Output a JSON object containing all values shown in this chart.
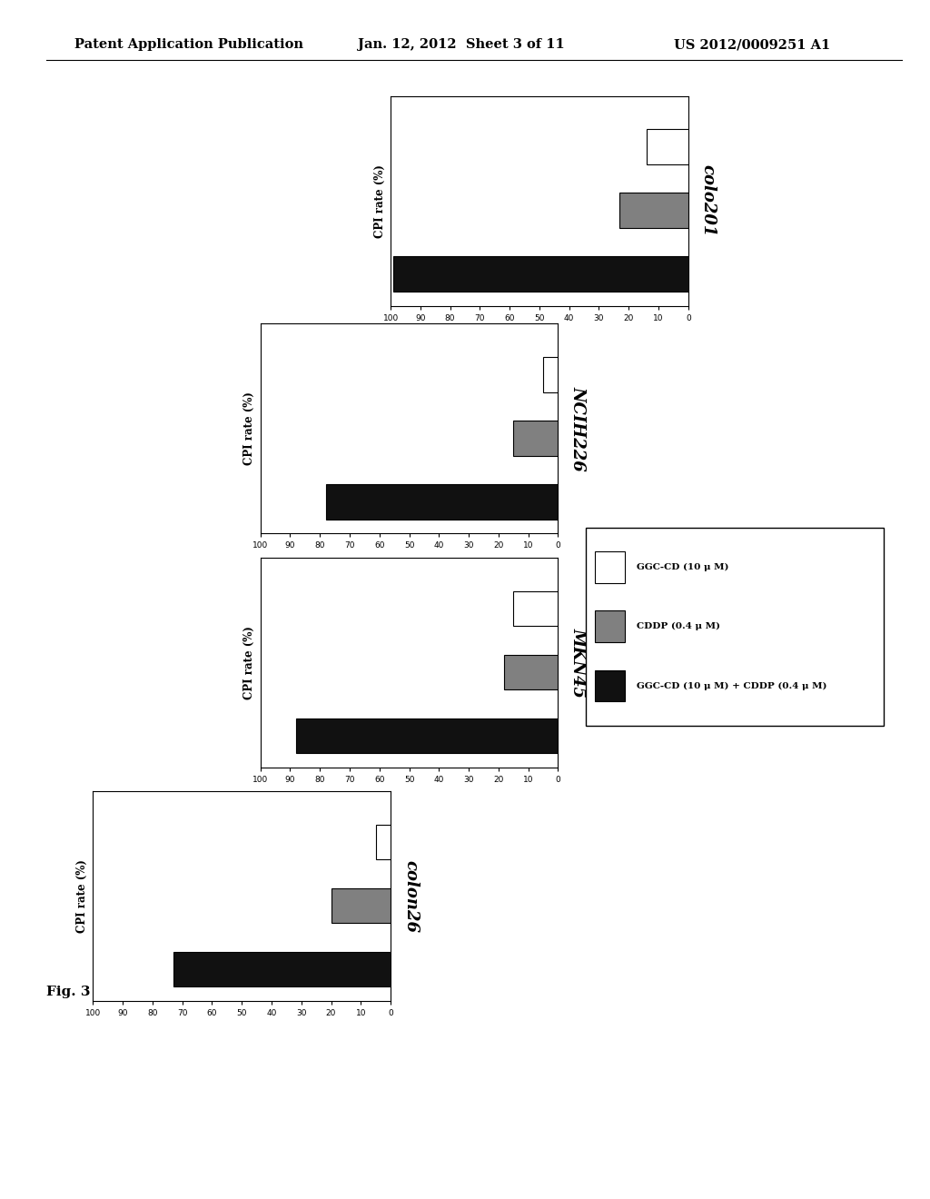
{
  "charts": [
    {
      "name": "colo201",
      "ggc_cd": 14,
      "cddp": 23,
      "combined": 99
    },
    {
      "name": "NCIH226",
      "ggc_cd": 5,
      "cddp": 15,
      "combined": 78
    },
    {
      "name": "MKN45",
      "ggc_cd": 15,
      "cddp": 18,
      "combined": 88
    },
    {
      "name": "colon26",
      "ggc_cd": 5,
      "cddp": 20,
      "combined": 73
    }
  ],
  "bar_colors": [
    "white",
    "#808080",
    "#111111"
  ],
  "bar_edgecolor": "#000000",
  "xlabel": "CPI rate (%)",
  "xlim_max": 100,
  "xticks": [
    0,
    10,
    20,
    30,
    40,
    50,
    60,
    70,
    80,
    90,
    100
  ],
  "xticklabels": [
    "0",
    "10",
    "20",
    "30",
    "40",
    "50",
    "60",
    "70",
    "80",
    "90",
    "100"
  ],
  "legend_labels": [
    "GGC-CD (10 μ M)",
    "CDDP (0.4 μ M)",
    "GGC-CD (10 μ M) + CDDP (0.4 μ M)"
  ],
  "header_left": "Patent Application Publication",
  "header_center": "Jan. 12, 2012  Sheet 3 of 11",
  "header_right": "US 2012/0009251 A1",
  "fig_label": "Fig. 3",
  "bg_color": "#ffffff"
}
